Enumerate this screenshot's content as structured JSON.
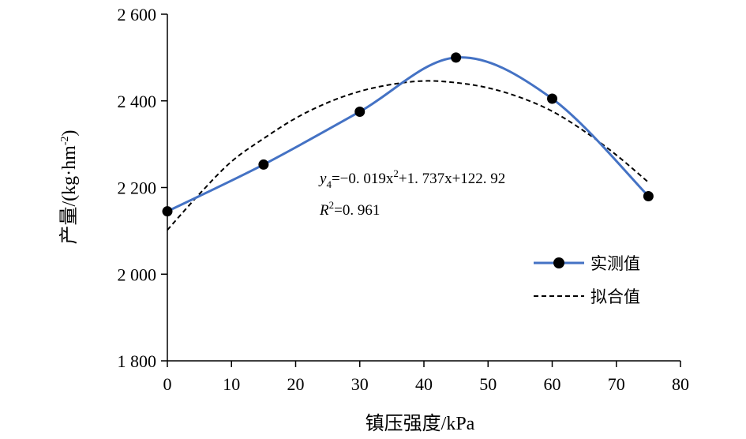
{
  "chart_data": {
    "type": "line",
    "xlabel": "镇压强度/kPa",
    "ylabel": "产量/(kg·hm-2)",
    "xlim": [
      0,
      80
    ],
    "ylim": [
      1800,
      2600
    ],
    "x_ticks": [
      "0",
      "10",
      "20",
      "30",
      "40",
      "50",
      "60",
      "70",
      "80"
    ],
    "y_ticks": [
      "1 800",
      "2 000",
      "2 200",
      "2 400",
      "2 600"
    ],
    "grid": false,
    "legend_position": "right",
    "series": [
      {
        "name": "实测值",
        "style": "solid-with-markers",
        "color": "#4472C4",
        "x": [
          0,
          15,
          30,
          45,
          60,
          75
        ],
        "values": [
          2145,
          2253,
          2375,
          2500,
          2405,
          2180
        ]
      },
      {
        "name": "拟合值",
        "style": "dashed",
        "color": "#000000",
        "x": [
          0,
          5,
          10,
          15,
          20,
          25,
          30,
          35,
          40,
          45,
          50,
          55,
          60,
          65,
          70,
          75
        ],
        "values": [
          2102,
          2185,
          2260,
          2313,
          2360,
          2396,
          2422,
          2438,
          2446,
          2442,
          2430,
          2408,
          2376,
          2330,
          2275,
          2212
        ]
      }
    ],
    "annotation": {
      "equation": {
        "y": "y",
        "sub": "4",
        "rest": "=−0. 019x",
        "sup": "2",
        "tail": "+1. 737x+122. 92"
      },
      "r2": {
        "r": "R",
        "sup": "2",
        "rest": "=0. 961"
      }
    }
  }
}
